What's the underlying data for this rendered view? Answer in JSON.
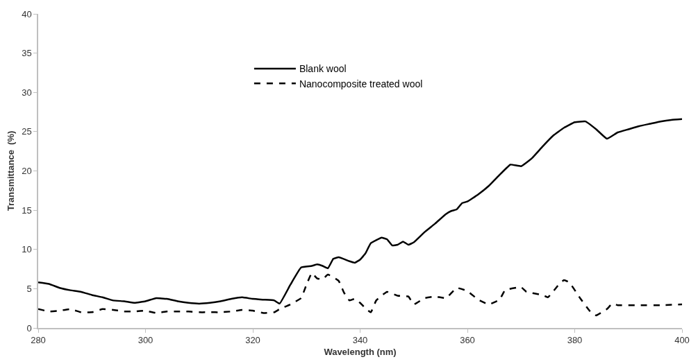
{
  "chart_data": {
    "type": "line",
    "xlabel": "Wavelength (nm)",
    "ylabel": "Transmittance  (%)",
    "xlim": [
      280,
      400
    ],
    "xticks": [
      280,
      300,
      320,
      340,
      360,
      380,
      400
    ],
    "ylim": [
      0,
      40
    ],
    "yticks": [
      0,
      5,
      10,
      15,
      20,
      25,
      30,
      35,
      40
    ],
    "legend": "top",
    "marker": "none",
    "series": [
      {
        "name": "Blank wool",
        "color": "#000000",
        "line_style": "solid",
        "x": [
          280,
          282,
          284,
          286,
          288,
          290,
          292,
          294,
          296,
          298,
          300,
          302,
          304,
          306,
          308,
          310,
          312,
          314,
          316,
          318,
          320,
          322,
          324,
          325,
          327,
          329,
          331,
          332,
          333,
          334,
          335,
          336,
          338,
          339,
          340,
          341,
          342,
          344,
          345,
          346,
          347,
          348,
          349,
          350,
          352,
          354,
          356,
          357,
          358,
          359,
          360,
          362,
          364,
          366,
          368,
          370,
          372,
          374,
          376,
          378,
          380,
          382,
          384,
          386,
          388,
          390,
          392,
          394,
          396,
          398,
          400
        ],
        "values": [
          5.8,
          5.6,
          5.1,
          4.8,
          4.6,
          4.2,
          3.9,
          3.5,
          3.4,
          3.2,
          3.4,
          3.8,
          3.7,
          3.4,
          3.2,
          3.1,
          3.2,
          3.4,
          3.7,
          3.9,
          3.7,
          3.6,
          3.5,
          3.1,
          5.5,
          7.7,
          7.9,
          8.1,
          7.9,
          7.6,
          8.8,
          9.0,
          8.5,
          8.3,
          8.7,
          9.5,
          10.8,
          11.5,
          11.3,
          10.5,
          10.6,
          11.0,
          10.6,
          10.9,
          12.2,
          13.3,
          14.5,
          14.9,
          15.1,
          15.9,
          16.1,
          17.0,
          18.1,
          19.5,
          20.8,
          20.6,
          21.6,
          23.1,
          24.5,
          25.5,
          26.2,
          26.3,
          25.3,
          24.1,
          24.9,
          25.3,
          25.7,
          26.0,
          26.3,
          26.5,
          26.6
        ]
      },
      {
        "name": "Nanocomposite treated wool",
        "color": "#000000",
        "line_style": "dashed",
        "x": [
          280,
          282,
          284,
          286,
          288,
          290,
          292,
          294,
          296,
          298,
          300,
          302,
          304,
          306,
          308,
          310,
          312,
          314,
          316,
          318,
          320,
          322,
          324,
          325,
          327,
          329,
          330,
          331,
          332,
          333,
          334,
          336,
          337,
          338,
          339,
          340,
          341,
          342,
          343,
          345,
          347,
          349,
          350,
          352,
          354,
          356,
          358,
          360,
          362,
          364,
          366,
          367,
          370,
          371,
          374,
          375,
          377,
          378,
          379,
          381,
          383,
          384,
          386,
          387,
          388,
          392,
          396,
          400
        ],
        "values": [
          2.4,
          2.1,
          2.2,
          2.4,
          2.0,
          2.0,
          2.4,
          2.3,
          2.1,
          2.1,
          2.2,
          1.9,
          2.1,
          2.1,
          2.1,
          2.0,
          2.0,
          2.0,
          2.1,
          2.3,
          2.2,
          1.9,
          2.0,
          2.4,
          3.0,
          3.8,
          5.5,
          7.0,
          6.3,
          6.2,
          6.8,
          6.0,
          4.5,
          3.5,
          3.7,
          3.2,
          2.5,
          2.0,
          3.5,
          4.6,
          4.1,
          4.0,
          3.0,
          3.8,
          4.0,
          3.8,
          5.1,
          4.7,
          3.6,
          3.0,
          3.6,
          4.8,
          5.2,
          4.6,
          4.2,
          3.9,
          5.5,
          6.1,
          5.8,
          3.8,
          2.0,
          1.6,
          2.4,
          3.1,
          2.9,
          2.9,
          2.9,
          3.0
        ]
      }
    ]
  }
}
